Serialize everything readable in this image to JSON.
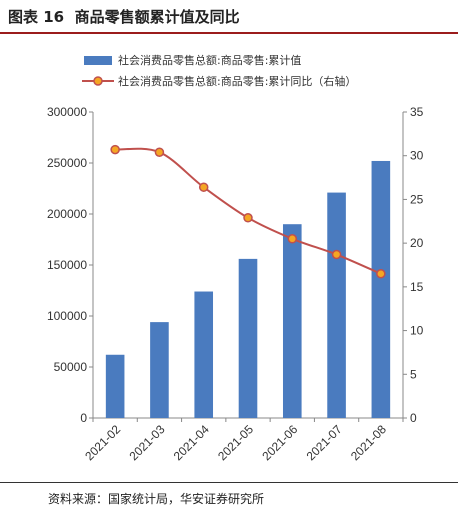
{
  "header": {
    "figure_no": "图表 16",
    "title": "商品零售额累计值及同比"
  },
  "footer": {
    "source": "资料来源：国家统计局，华安证券研究所"
  },
  "colors": {
    "bar": "#4a7bbf",
    "line": "#c0504d",
    "marker_fill": "#f5a623",
    "title_rule": "#9b1c1c"
  },
  "chart_data": {
    "type": "bar",
    "categories": [
      "2021-02",
      "2021-03",
      "2021-04",
      "2021-05",
      "2021-06",
      "2021-07",
      "2021-08"
    ],
    "series": [
      {
        "name": "社会消费品零售总额:商品零售:累计值",
        "type": "bar",
        "axis": "left",
        "values": [
          62000,
          94000,
          124000,
          156000,
          190000,
          221000,
          252000
        ]
      },
      {
        "name": "社会消费品零售总额:商品零售:累计同比（右轴）",
        "type": "line",
        "axis": "right",
        "values": [
          30.7,
          30.4,
          26.4,
          22.9,
          20.5,
          18.7,
          16.5
        ]
      }
    ],
    "ylim_left": [
      0,
      300000
    ],
    "yticks_left": [
      "0",
      "50000",
      "100000",
      "150000",
      "200000",
      "250000",
      "300000"
    ],
    "ylim_right": [
      0,
      35
    ],
    "yticks_right": [
      "0",
      "5",
      "10",
      "15",
      "20",
      "25",
      "30",
      "35"
    ],
    "legend_position": "top",
    "grid": false
  }
}
